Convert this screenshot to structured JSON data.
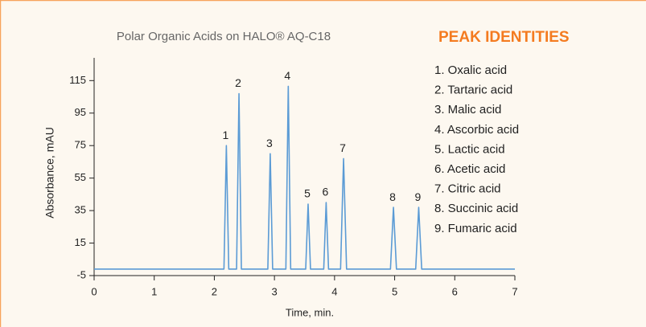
{
  "chart_data": {
    "type": "line",
    "title": "Polar Organic Acids on HALO® AQ-C18",
    "xlabel": "Time, min.",
    "ylabel": "Absorbance, mAU",
    "xlim": [
      0,
      7
    ],
    "xticks": [
      0,
      1,
      2,
      3,
      4,
      5,
      6,
      7
    ],
    "ylim": [
      -5,
      129
    ],
    "yticks": [
      -5,
      15,
      35,
      55,
      75,
      95,
      115
    ],
    "series": [
      {
        "color": "#5b9bd5",
        "x": [
          0,
          2.16,
          2.2,
          2.24,
          2.37,
          2.41,
          2.45,
          2.89,
          2.93,
          2.97,
          3.19,
          3.23,
          3.27,
          3.52,
          3.56,
          3.6,
          3.82,
          3.86,
          3.9,
          4.1,
          4.15,
          4.2,
          4.93,
          4.98,
          5.03,
          5.35,
          5.4,
          5.45,
          7
        ],
        "values": [
          -1,
          -1,
          75,
          -1,
          -1,
          107,
          -1,
          -1,
          70,
          -1,
          -1,
          111.5,
          -1,
          -1,
          39,
          -1,
          -1,
          40,
          -1,
          -1,
          67,
          -1,
          -1,
          37,
          -1,
          -1,
          37,
          -1,
          -1
        ]
      }
    ],
    "peak_labels": [
      "1",
      "2",
      "3",
      "4",
      "5",
      "6",
      "7",
      "8",
      "9"
    ],
    "legend_title": "PEAK IDENTITIES",
    "legend_items": [
      "1. Oxalic acid",
      "2. Tartaric acid",
      "3. Malic acid",
      "4. Ascorbic acid",
      "5. Lactic acid",
      "6. Acetic acid",
      "7. Citric acid",
      "8. Succinic acid",
      "9. Fumaric acid"
    ]
  }
}
